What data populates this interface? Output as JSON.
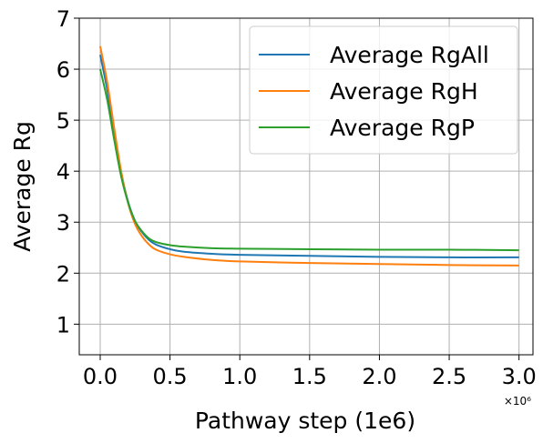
{
  "chart_data": {
    "type": "line",
    "xlabel": "Pathway step (1e6)",
    "ylabel": "Average Rg",
    "x_offset_label": "×10⁶",
    "xlim": [
      -0.15,
      3.1
    ],
    "ylim": [
      0.4,
      7.0
    ],
    "xticks": [
      0.0,
      0.5,
      1.0,
      1.5,
      2.0,
      2.5,
      3.0
    ],
    "xtick_labels": [
      "0.0",
      "0.5",
      "1.0",
      "1.5",
      "2.0",
      "2.5",
      "3.0"
    ],
    "yticks": [
      1,
      2,
      3,
      4,
      5,
      6,
      7
    ],
    "ytick_labels": [
      "1",
      "2",
      "3",
      "4",
      "5",
      "6",
      "7"
    ],
    "grid": true,
    "legend_position": "top-right",
    "series": [
      {
        "name": "Average RgAll",
        "color": "#1f77b4",
        "x": [
          0.0,
          0.05,
          0.1,
          0.15,
          0.2,
          0.25,
          0.3,
          0.35,
          0.4,
          0.5,
          0.6,
          0.8,
          1.0,
          1.5,
          2.0,
          2.5,
          3.0
        ],
        "y": [
          6.28,
          5.6,
          4.75,
          3.98,
          3.4,
          3.02,
          2.8,
          2.65,
          2.56,
          2.47,
          2.42,
          2.38,
          2.36,
          2.34,
          2.32,
          2.31,
          2.31
        ]
      },
      {
        "name": "Average RgH",
        "color": "#ff7f0e",
        "x": [
          0.0,
          0.05,
          0.1,
          0.15,
          0.2,
          0.25,
          0.3,
          0.35,
          0.4,
          0.5,
          0.6,
          0.8,
          1.0,
          1.5,
          2.0,
          2.5,
          3.0
        ],
        "y": [
          6.45,
          5.75,
          4.85,
          4.0,
          3.37,
          2.96,
          2.72,
          2.56,
          2.46,
          2.37,
          2.32,
          2.26,
          2.23,
          2.2,
          2.18,
          2.16,
          2.15
        ]
      },
      {
        "name": "Average RgP",
        "color": "#2ca02c",
        "x": [
          0.0,
          0.05,
          0.1,
          0.15,
          0.2,
          0.25,
          0.3,
          0.35,
          0.4,
          0.5,
          0.6,
          0.8,
          1.0,
          1.5,
          2.0,
          2.5,
          3.0
        ],
        "y": [
          6.0,
          5.4,
          4.62,
          3.9,
          3.38,
          3.02,
          2.82,
          2.68,
          2.61,
          2.55,
          2.52,
          2.49,
          2.48,
          2.47,
          2.46,
          2.46,
          2.45
        ]
      }
    ]
  }
}
